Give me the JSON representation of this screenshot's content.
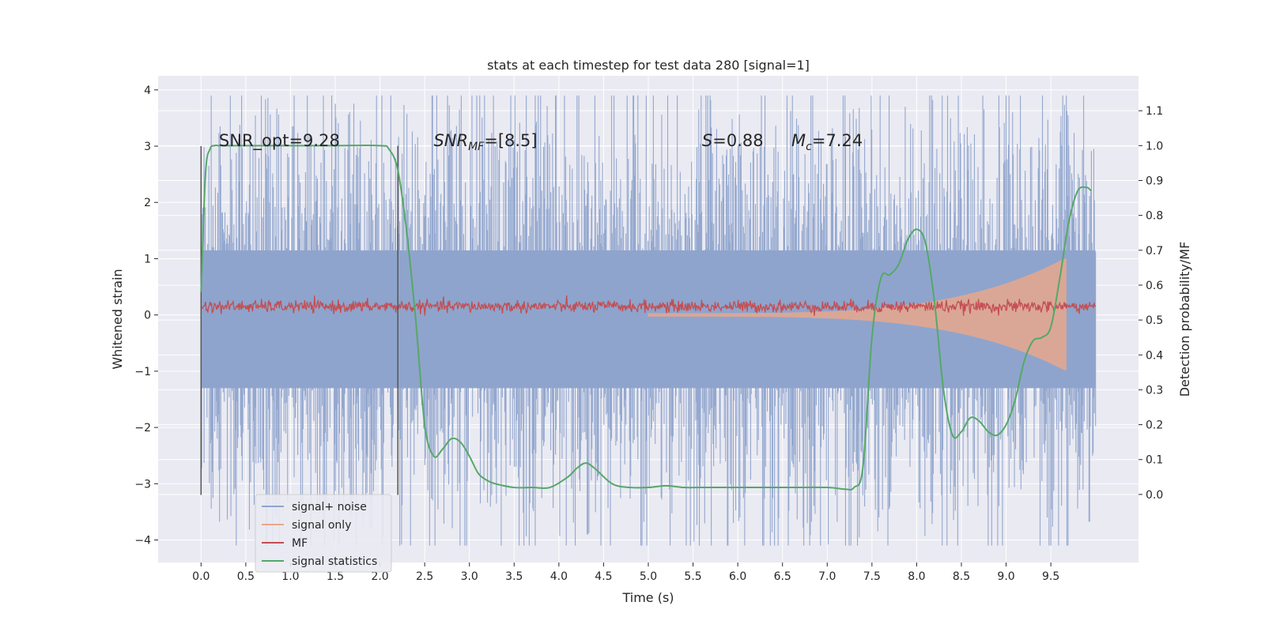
{
  "chart_data": {
    "type": "line",
    "title": "stats at each timestep for test data 280 [signal=1]",
    "xlabel": "Time (s)",
    "ylabel": "Whitened strain",
    "y2label": "Detection probability/MF",
    "xlim": [
      -0.48,
      10.48
    ],
    "ylim": [
      -4.4,
      4.25
    ],
    "y2lim": [
      -0.195,
      1.2
    ],
    "x_ticks": [
      0.0,
      0.5,
      1.0,
      1.5,
      2.0,
      2.5,
      3.0,
      3.5,
      4.0,
      4.5,
      5.0,
      5.5,
      6.0,
      6.5,
      7.0,
      7.5,
      8.0,
      8.5,
      9.0,
      9.5
    ],
    "x_tick_labels": [
      "0.0",
      "0.5",
      "1.0",
      "1.5",
      "2.0",
      "2.5",
      "3.0",
      "3.5",
      "4.0",
      "4.5",
      "5.0",
      "5.5",
      "6.0",
      "6.5",
      "7.0",
      "7.5",
      "8.0",
      "8.5",
      "9.0",
      "9.5"
    ],
    "y_ticks": [
      -4,
      -3,
      -2,
      -1,
      0,
      1,
      2,
      3,
      4
    ],
    "y_tick_labels": [
      "−4",
      "−3",
      "−2",
      "−1",
      "0",
      "1",
      "2",
      "3",
      "4"
    ],
    "y2_ticks": [
      0.0,
      0.1,
      0.2,
      0.3,
      0.4,
      0.5,
      0.6,
      0.7,
      0.8,
      0.9,
      1.0,
      1.1
    ],
    "y2_tick_labels": [
      "0.0",
      "0.1",
      "0.2",
      "0.3",
      "0.4",
      "0.5",
      "0.6",
      "0.7",
      "0.8",
      "0.9",
      "1.0",
      "1.1"
    ],
    "grid": true,
    "legend_placement": "lower-left",
    "legend": [
      {
        "label": "signal+ noise",
        "color": "#8fa4cc"
      },
      {
        "label": "signal only",
        "color": "#e8a88c"
      },
      {
        "label": "MF",
        "color": "#c44e52"
      },
      {
        "label": "signal statistics",
        "color": "#55a868"
      }
    ],
    "annotations": [
      {
        "x": 0.2,
        "y": 3.0,
        "text": "SNR_opt=9.28"
      },
      {
        "x": 2.6,
        "y": 3.0,
        "text": "SNR_MF=[8.5]"
      },
      {
        "x": 5.6,
        "y": 3.0,
        "text": "S=0.88"
      },
      {
        "x": 6.6,
        "y": 3.0,
        "text": "M_c=7.24"
      }
    ],
    "vertical_markers": [
      {
        "x": 0.0,
        "ymin": -3.2,
        "ymax": 3.0
      },
      {
        "x": 2.2,
        "ymin": -3.2,
        "ymax": 3.0
      }
    ],
    "noise_envelope": {
      "x_range": [
        0.0,
        10.0
      ],
      "typical_abs_max": 2.3,
      "peak_abs_max": 3.9
    },
    "signal_only": {
      "x_range": [
        5.0,
        9.67
      ],
      "amplitude_start": 0.03,
      "amplitude_peak": 1.0,
      "peak_x": 9.65
    },
    "mf_band": {
      "x_range": [
        0.0,
        10.0
      ],
      "center": 0.15,
      "amplitude": 0.12
    },
    "series": [
      {
        "name": "signal statistics",
        "axis": "right",
        "x": [
          0.0,
          0.05,
          0.1,
          0.15,
          0.2,
          0.3,
          0.5,
          1.0,
          1.5,
          2.0,
          2.1,
          2.2,
          2.3,
          2.4,
          2.5,
          2.6,
          2.7,
          2.8,
          2.9,
          3.0,
          3.1,
          3.2,
          3.3,
          3.5,
          3.7,
          3.9,
          4.1,
          4.2,
          4.3,
          4.4,
          4.6,
          4.8,
          5.0,
          5.2,
          5.4,
          5.6,
          6.0,
          6.5,
          7.0,
          7.2,
          7.3,
          7.4,
          7.5,
          7.6,
          7.7,
          7.8,
          7.9,
          8.0,
          8.1,
          8.2,
          8.3,
          8.4,
          8.5,
          8.6,
          8.7,
          8.8,
          8.9,
          9.0,
          9.1,
          9.2,
          9.3,
          9.4,
          9.5,
          9.6,
          9.7,
          9.8,
          9.9,
          9.95
        ],
        "values": [
          0.58,
          0.92,
          0.99,
          1.0,
          1.0,
          1.0,
          1.0,
          1.0,
          1.0,
          1.0,
          0.99,
          0.93,
          0.75,
          0.5,
          0.2,
          0.11,
          0.13,
          0.16,
          0.15,
          0.11,
          0.06,
          0.04,
          0.03,
          0.02,
          0.02,
          0.02,
          0.05,
          0.075,
          0.09,
          0.075,
          0.03,
          0.02,
          0.02,
          0.025,
          0.02,
          0.02,
          0.02,
          0.02,
          0.02,
          0.015,
          0.02,
          0.08,
          0.45,
          0.62,
          0.63,
          0.66,
          0.73,
          0.76,
          0.72,
          0.55,
          0.3,
          0.17,
          0.18,
          0.22,
          0.21,
          0.18,
          0.17,
          0.2,
          0.27,
          0.38,
          0.44,
          0.45,
          0.48,
          0.62,
          0.78,
          0.87,
          0.88,
          0.87
        ]
      }
    ]
  }
}
